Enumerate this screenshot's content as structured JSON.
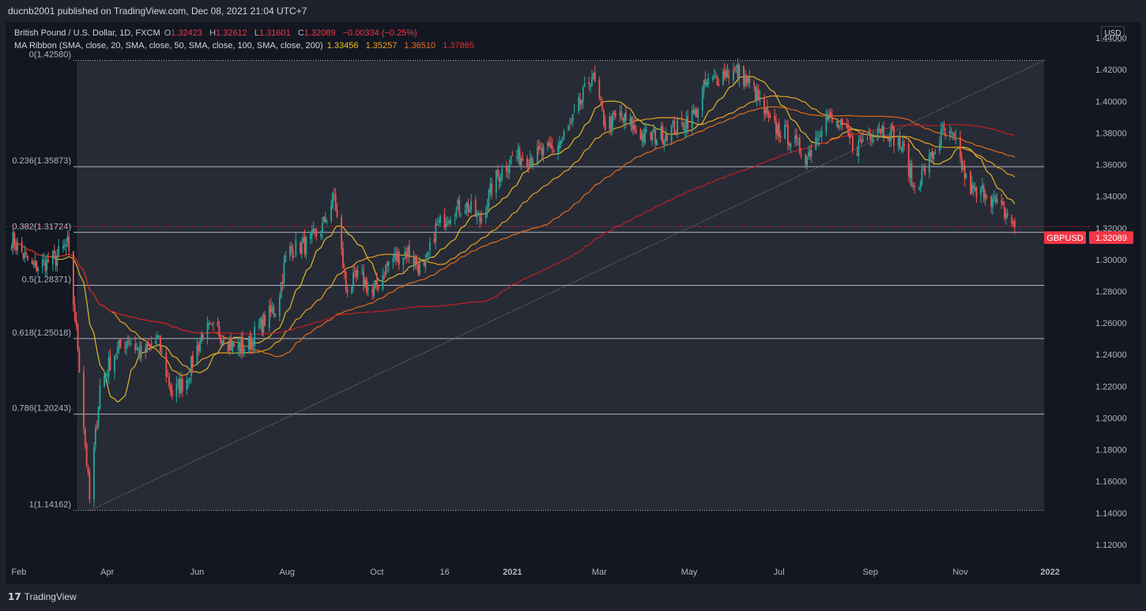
{
  "publisher_line": "ducnb2001 published on TradingView.com, Dec 08, 2021 21:04 UTC+7",
  "legend": {
    "symbol": "British Pound / U.S. Dollar, 1D, FXCM",
    "o_label": "O",
    "o": "1.32423",
    "h_label": "H",
    "h": "1.32612",
    "l_label": "L",
    "l": "1.31601",
    "c_label": "C",
    "c": "1.32089",
    "change": "−0.00334 (−0.25%)",
    "ma_title": "MA Ribbon (SMA, close, 20, SMA, close, 50, SMA, close, 100, SMA, close, 200)",
    "ma_values": [
      "1.33456",
      "1.35257",
      "1.36510",
      "1.37865"
    ]
  },
  "currency_button": "USD",
  "price_tag": {
    "symbol": "GBPUSD",
    "value": "1.32089"
  },
  "logo_text": "TradingView",
  "colors": {
    "up": "#26a69a",
    "down": "#ef5350",
    "sma20": "#ddb82c",
    "sma50": "#e9a021",
    "sma100": "#e06a1a",
    "sma200": "#c21e23",
    "tag": "#f23645"
  },
  "chart_data": {
    "type": "candlestick",
    "symbol": "GBPUSD",
    "interval": "1D",
    "y_range": [
      1.11,
      1.45
    ],
    "y_ticks": [
      "1.44000",
      "1.42000",
      "1.40000",
      "1.38000",
      "1.36000",
      "1.34000",
      "1.32000",
      "1.30000",
      "1.28000",
      "1.26000",
      "1.24000",
      "1.22000",
      "1.20000",
      "1.18000",
      "1.16000",
      "1.14000",
      "1.12000"
    ],
    "y_tick_values": [
      1.44,
      1.42,
      1.4,
      1.38,
      1.36,
      1.34,
      1.32,
      1.3,
      1.28,
      1.26,
      1.24,
      1.22,
      1.2,
      1.18,
      1.16,
      1.14,
      1.12
    ],
    "x_ticks": [
      "Feb",
      "Apr",
      "Jun",
      "Aug",
      "Oct",
      "16",
      "2021",
      "Mar",
      "May",
      "Jul",
      "Sep",
      "Nov",
      "2022"
    ],
    "x_tick_dates": [
      "2020-02-01",
      "2020-04-01",
      "2020-06-01",
      "2020-08-01",
      "2020-10-01",
      "2020-11-16",
      "2021-01-01",
      "2021-03-01",
      "2021-05-01",
      "2021-07-01",
      "2021-09-01",
      "2021-11-01",
      "2022-01-01"
    ],
    "x_range": [
      "2020-01-24",
      "2022-01-28"
    ],
    "fib_levels": [
      {
        "label": "0(1.42580)",
        "value": 1.4258
      },
      {
        "label": "0.236(1.35873)",
        "value": 1.35873
      },
      {
        "label": "0.382(1.31724)",
        "value": 1.31724
      },
      {
        "label": "0.5(1.28371)",
        "value": 1.28371
      },
      {
        "label": "0.618(1.25018)",
        "value": 1.25018
      },
      {
        "label": "0.786(1.20243)",
        "value": 1.20243
      },
      {
        "label": "1(1.14162)",
        "value": 1.14162
      }
    ],
    "fib_range": [
      "2020-03-20",
      "2021-12-28"
    ],
    "trendline": {
      "start": {
        "date": "2020-03-20",
        "value": 1.14162
      },
      "end": {
        "date": "2021-12-28",
        "value": 1.4258
      }
    },
    "last_close": 1.32089,
    "path_keypoints": [
      [
        "2020-01-26",
        1.315
      ],
      [
        "2020-02-10",
        1.295
      ],
      [
        "2020-02-25",
        1.3
      ],
      [
        "2020-03-05",
        1.31
      ],
      [
        "2020-03-12",
        1.245
      ],
      [
        "2020-03-20",
        1.148
      ],
      [
        "2020-03-27",
        1.22
      ],
      [
        "2020-04-05",
        1.24
      ],
      [
        "2020-04-15",
        1.25
      ],
      [
        "2020-04-25",
        1.24
      ],
      [
        "2020-05-05",
        1.25
      ],
      [
        "2020-05-15",
        1.215
      ],
      [
        "2020-05-25",
        1.225
      ],
      [
        "2020-06-05",
        1.255
      ],
      [
        "2020-06-15",
        1.255
      ],
      [
        "2020-06-25",
        1.245
      ],
      [
        "2020-07-05",
        1.245
      ],
      [
        "2020-07-15",
        1.26
      ],
      [
        "2020-07-25",
        1.27
      ],
      [
        "2020-08-01",
        1.305
      ],
      [
        "2020-08-15",
        1.31
      ],
      [
        "2020-08-25",
        1.32
      ],
      [
        "2020-09-02",
        1.34
      ],
      [
        "2020-09-10",
        1.282
      ],
      [
        "2020-09-20",
        1.29
      ],
      [
        "2020-09-28",
        1.278
      ],
      [
        "2020-10-10",
        1.3
      ],
      [
        "2020-10-22",
        1.305
      ],
      [
        "2020-11-02",
        1.292
      ],
      [
        "2020-11-10",
        1.32
      ],
      [
        "2020-11-20",
        1.33
      ],
      [
        "2020-11-30",
        1.335
      ],
      [
        "2020-12-10",
        1.325
      ],
      [
        "2020-12-20",
        1.35
      ],
      [
        "2021-01-01",
        1.365
      ],
      [
        "2021-01-15",
        1.365
      ],
      [
        "2021-01-30",
        1.37
      ],
      [
        "2021-02-10",
        1.385
      ],
      [
        "2021-02-24",
        1.417
      ],
      [
        "2021-03-05",
        1.385
      ],
      [
        "2021-03-15",
        1.39
      ],
      [
        "2021-03-31",
        1.378
      ],
      [
        "2021-04-10",
        1.378
      ],
      [
        "2021-04-25",
        1.385
      ],
      [
        "2021-05-05",
        1.392
      ],
      [
        "2021-05-12",
        1.41
      ],
      [
        "2021-05-25",
        1.418
      ],
      [
        "2021-06-05",
        1.418
      ],
      [
        "2021-06-15",
        1.405
      ],
      [
        "2021-06-25",
        1.385
      ],
      [
        "2021-07-05",
        1.38
      ],
      [
        "2021-07-20",
        1.365
      ],
      [
        "2021-08-01",
        1.39
      ],
      [
        "2021-08-12",
        1.383
      ],
      [
        "2021-08-22",
        1.37
      ],
      [
        "2021-09-05",
        1.385
      ],
      [
        "2021-09-15",
        1.38
      ],
      [
        "2021-09-25",
        1.367
      ],
      [
        "2021-09-30",
        1.345
      ],
      [
        "2021-10-10",
        1.36
      ],
      [
        "2021-10-20",
        1.38
      ],
      [
        "2021-10-28",
        1.375
      ],
      [
        "2021-11-05",
        1.35
      ],
      [
        "2021-11-12",
        1.34
      ],
      [
        "2021-11-18",
        1.345
      ],
      [
        "2021-11-25",
        1.335
      ],
      [
        "2021-12-03",
        1.328
      ],
      [
        "2021-12-08",
        1.321
      ]
    ],
    "moving_averages": [
      {
        "name": "SMA 20",
        "last": "1.33456"
      },
      {
        "name": "SMA 50",
        "last": "1.35257"
      },
      {
        "name": "SMA 100",
        "last": "1.36510"
      },
      {
        "name": "SMA 200",
        "last": "1.37865"
      }
    ]
  }
}
